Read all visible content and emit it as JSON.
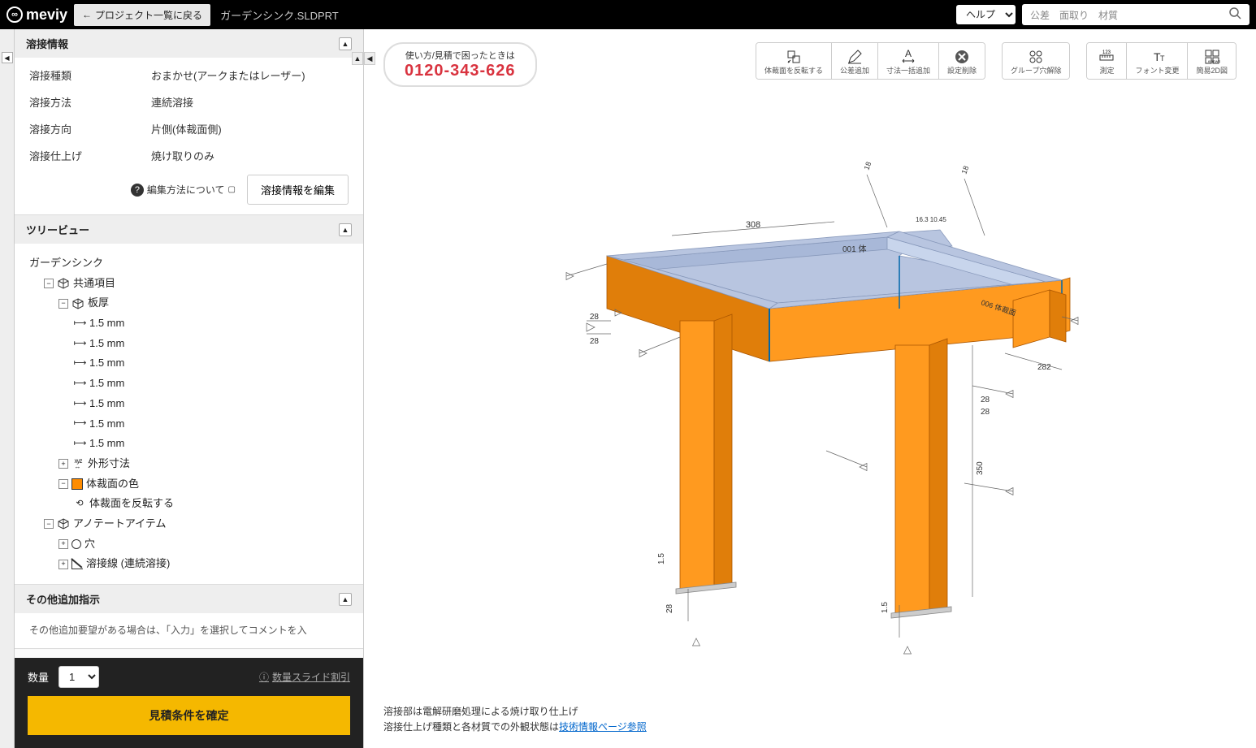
{
  "header": {
    "logo_text": "meviy",
    "back_label": "プロジェクト一覧に戻る",
    "filename": "ガーデンシンク.SLDPRT",
    "help_label": "ヘルプ",
    "search_placeholders": [
      "公差",
      "面取り",
      "材質"
    ]
  },
  "welding_panel": {
    "title": "溶接情報",
    "rows": [
      {
        "label": "溶接種類",
        "value": "おまかせ(アークまたはレーザー)"
      },
      {
        "label": "溶接方法",
        "value": "連続溶接"
      },
      {
        "label": "溶接方向",
        "value": "片側(体裁面側)"
      },
      {
        "label": "溶接仕上げ",
        "value": "焼け取りのみ"
      }
    ],
    "help_text": "編集方法について",
    "edit_button": "溶接情報を編集"
  },
  "tree_panel": {
    "title": "ツリービュー",
    "root": "ガーデンシンク",
    "common_items": "共通項目",
    "thickness": "板厚",
    "thickness_items": [
      "1.5 mm",
      "1.5 mm",
      "1.5 mm",
      "1.5 mm",
      "1.5 mm",
      "1.5 mm",
      "1.5 mm"
    ],
    "outer_dim": "外形寸法",
    "face_color": "体裁面の色",
    "flip_face": "体裁面を反転する",
    "annotate": "アノテートアイテム",
    "hole": "穴",
    "weld_line": "溶接線 (連続溶接)"
  },
  "other_panel": {
    "title": "その他追加指示",
    "text": "その他追加要望がある場合は、「入力」を選択してコメントを入"
  },
  "qty": {
    "label": "数量",
    "value": "1",
    "slide_link": "数量スライド割引",
    "confirm": "見積条件を確定"
  },
  "phone": {
    "caption": "使い方/見積で困ったときは",
    "number": "0120-343-626"
  },
  "toolbar": {
    "group1": [
      {
        "ico": "flip",
        "label": "体裁面を反転する"
      },
      {
        "ico": "pencil",
        "label": "公差追加"
      },
      {
        "ico": "dim-a",
        "label": "寸法一括追加"
      },
      {
        "ico": "delete",
        "label": "設定削除"
      }
    ],
    "group2": [
      {
        "ico": "holes",
        "label": "グループ穴解除"
      }
    ],
    "group3": [
      {
        "ico": "measure",
        "label": "測定"
      },
      {
        "ico": "font",
        "label": "フォント変更"
      },
      {
        "ico": "views",
        "label": "簡易2D図"
      }
    ]
  },
  "model": {
    "top_color": "#b8c5e0",
    "side_color": "#ff9a1f",
    "side_color_dark": "#e07e0a",
    "edge_color": "#0066aa",
    "dim_line_color": "#666",
    "dim_text_color": "#333",
    "dims": {
      "top_length": "308",
      "top_face": "001 体",
      "top_right": "006 体裁面",
      "height_left_a": "28",
      "height_left_b": "28",
      "right_282": "282",
      "right_350": "350",
      "right_28a": "28",
      "right_28b": "28",
      "bottom_15a": "1.5",
      "bottom_28": "28",
      "bottom_15b": "1.5",
      "notch": "16.3 10.45",
      "top_angle_a": "18",
      "top_angle_b": "18"
    }
  },
  "footer": {
    "line1": "溶接部は電解研磨処理による焼け取り仕上げ",
    "line2_pre": "溶接仕上げ種類と各材質での外観状態は",
    "line2_link": "技術情報ページ参照"
  }
}
